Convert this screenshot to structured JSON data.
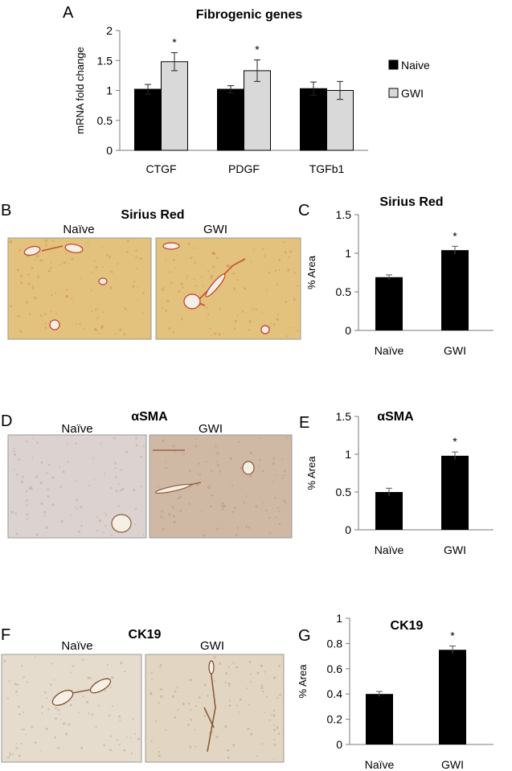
{
  "panels": {
    "A": "A",
    "B": "B",
    "C": "C",
    "D": "D",
    "E": "E",
    "F": "F",
    "G": "G"
  },
  "images": {
    "B": {
      "title": "Sirius Red",
      "left_label": "Naïve",
      "right_label": "GWI",
      "base_color": "#e2c27c",
      "stain_color": "#c23a2a"
    },
    "D": {
      "title": "αSMA",
      "left_label": "Naïve",
      "right_label": "GWI",
      "base_color_left": "#dcd2d0",
      "base_color_right": "#cfb8a4",
      "stain_color": "#8a5a36"
    },
    "F": {
      "title": "CK19",
      "left_label": "Naïve",
      "right_label": "GWI",
      "base_color_left": "#e6dccd",
      "base_color_right": "#e2d6c2",
      "stain_color": "#7a4522"
    }
  },
  "chart_data": [
    {
      "id": "A",
      "type": "bar",
      "title": "Fibrogenic genes",
      "ylabel": "mRNA fold change",
      "xlabel": "",
      "categories": [
        "CTGF",
        "PDGF",
        "TGFb1"
      ],
      "ylim": [
        0,
        2
      ],
      "yticks": [
        "0",
        "0.5",
        "1",
        "1.5",
        "2"
      ],
      "series": [
        {
          "name": "Naive",
          "color": "#000000",
          "values": [
            1.02,
            1.02,
            1.03
          ],
          "errors": [
            0.08,
            0.06,
            0.11
          ]
        },
        {
          "name": "GWI",
          "color": "#d9d9d9",
          "values": [
            1.48,
            1.33,
            1.0
          ],
          "errors": [
            0.15,
            0.18,
            0.15
          ]
        }
      ],
      "significance": [
        "*",
        "*",
        ""
      ],
      "legend_position": "right"
    },
    {
      "id": "C",
      "type": "bar",
      "title": "Sirius Red",
      "ylabel": "% Area",
      "xlabel": "",
      "categories": [
        "Naïve",
        "GWI"
      ],
      "ylim": [
        0,
        1.5
      ],
      "yticks": [
        "0",
        "0.5",
        "1",
        "1.5"
      ],
      "values": [
        0.69,
        1.04
      ],
      "errors": [
        0.03,
        0.05
      ],
      "significance": [
        "",
        "*"
      ],
      "color": "#000000"
    },
    {
      "id": "E",
      "type": "bar",
      "title": "αSMA",
      "ylabel": "% Area",
      "xlabel": "",
      "categories": [
        "Naïve",
        "GWI"
      ],
      "ylim": [
        0,
        1.5
      ],
      "yticks": [
        "0",
        "0.5",
        "1",
        "1.5"
      ],
      "values": [
        0.5,
        0.98
      ],
      "errors": [
        0.05,
        0.05
      ],
      "significance": [
        "",
        "*"
      ],
      "color": "#000000"
    },
    {
      "id": "G",
      "type": "bar",
      "title": "CK19",
      "ylabel": "% Area",
      "xlabel": "",
      "categories": [
        "Naïve",
        "GWI"
      ],
      "ylim": [
        0,
        1
      ],
      "yticks": [
        "0",
        "0.2",
        "0.4",
        "0.6",
        "0.8",
        "1"
      ],
      "values": [
        0.4,
        0.75
      ],
      "errors": [
        0.02,
        0.03
      ],
      "significance": [
        "",
        "*"
      ],
      "color": "#000000"
    }
  ]
}
